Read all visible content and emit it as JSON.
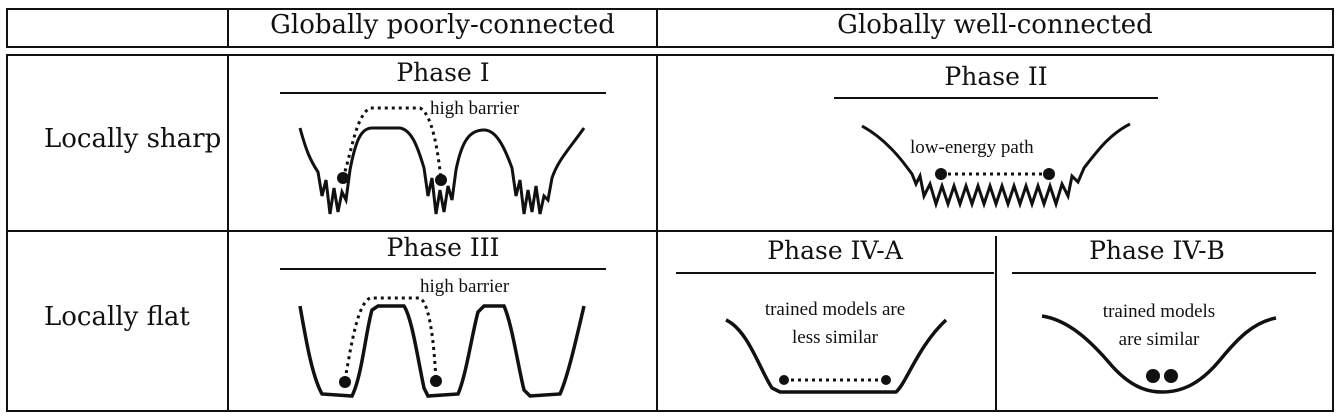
{
  "header": {
    "col_poor": "Globally poorly-connected",
    "col_well": "Globally well-connected"
  },
  "rows": {
    "sharp": "Locally sharp",
    "flat": "Locally flat"
  },
  "phases": {
    "p1": {
      "title": "Phase I",
      "note": "high barrier"
    },
    "p2": {
      "title": "Phase II",
      "note": "low-energy path"
    },
    "p3": {
      "title": "Phase III",
      "note": "high barrier"
    },
    "p4a": {
      "title": "Phase IV-A",
      "note_line1": "trained models are",
      "note_line2": "less similar"
    },
    "p4b": {
      "title": "Phase IV-B",
      "note_line1": "trained models",
      "note_line2": "are similar"
    }
  }
}
